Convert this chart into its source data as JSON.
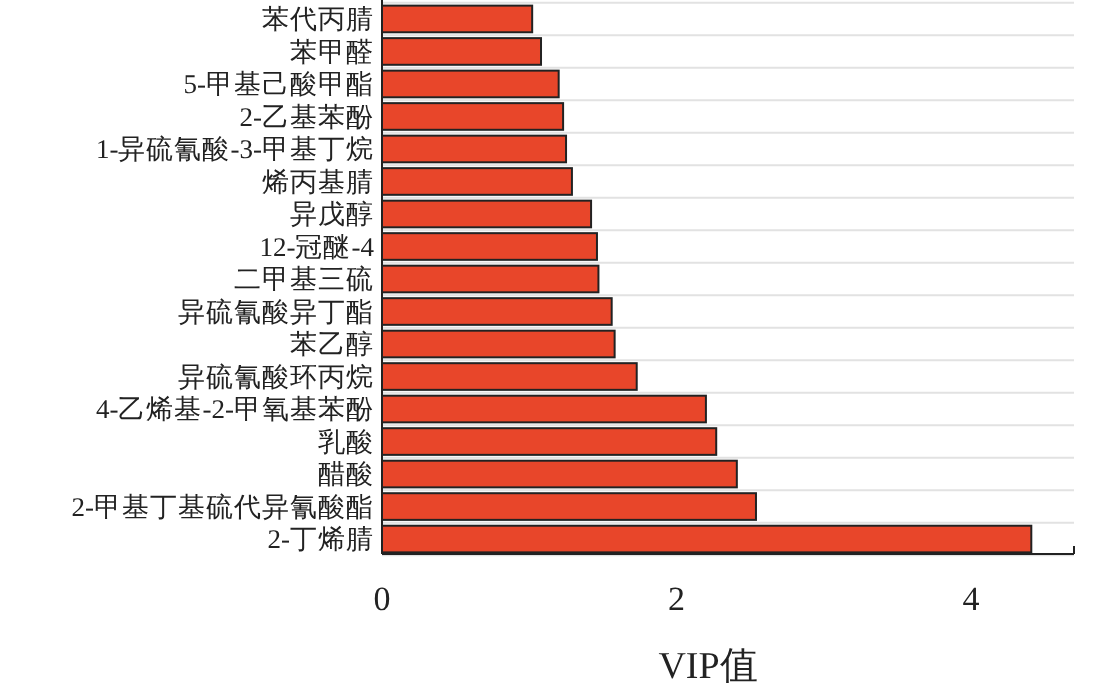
{
  "chart_data": {
    "type": "bar",
    "orientation": "horizontal",
    "xlabel": "VIP值",
    "categories": [
      "苯代丙腈",
      "苯甲醛",
      "5-甲基己酸甲酯",
      "2-乙基苯酚",
      "1-异硫氰酸-3-甲基丁烷",
      "烯丙基腈",
      "异戊醇",
      "12-冠醚-4",
      "二甲基三硫",
      "异硫氰酸异丁酯",
      "苯乙醇",
      "异硫氰酸环丙烷",
      "4-乙烯基-2-甲氧基苯酚",
      "乳酸",
      "醋酸",
      "2-甲基丁基硫代异氰酸酯",
      "2-丁烯腈"
    ],
    "values": [
      1.02,
      1.08,
      1.2,
      1.23,
      1.25,
      1.29,
      1.42,
      1.46,
      1.47,
      1.56,
      1.58,
      1.73,
      2.2,
      2.27,
      2.41,
      2.54,
      4.41
    ],
    "color": "#e8462a",
    "xlim": [
      0,
      4.7
    ],
    "xticks": [
      0,
      2,
      4
    ],
    "grid": "y"
  }
}
